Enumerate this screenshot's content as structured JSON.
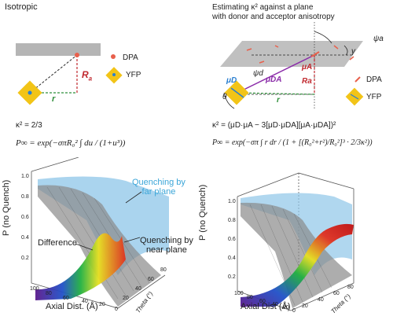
{
  "left_panel": {
    "title": "Isotropic",
    "legend_dpa": "DPA",
    "legend_yfp": "YFP",
    "label_Ra": "R",
    "label_Ra_sub": "a",
    "label_r": "r",
    "kappa_eq": "κ² = 2/3",
    "formula_text": "P∞ = exp(−σπR₀² ∫ du / (1+u³))"
  },
  "right_panel": {
    "title_line1": "Estimating κ² against a plane",
    "title_line2": "with donor and acceptor anisotropy",
    "legend_dpa": "DPA",
    "legend_yfp": "YFP",
    "label_psi_a": "ψa",
    "label_gamma": "γ",
    "label_psi_d": "ψd",
    "label_theta": "θ",
    "label_mu_d": "μD",
    "label_mu_da": "μDA",
    "label_mu_a": "μA",
    "label_Ra": "Ra",
    "label_r": "r",
    "kappa_eq": "κ² = (μD·μA − 3[μD·μDA][μA·μDA])²",
    "formula_text": "P∞ = exp(−σπ ∫ r dr / (1 + [(R₀²+r²)/R₀²]³ · 2/3κ²))"
  },
  "left_plot": {
    "ylabel": "P (no Quench)",
    "xlabel": "Axial Dist. (Å)",
    "zlabel": "Theta (°)",
    "yticks": [
      "1.0",
      "0.8",
      "0.6",
      "0.4",
      "0.2",
      "0"
    ],
    "xticks": [
      "100",
      "80",
      "60",
      "40",
      "20",
      "0"
    ],
    "zticks": [
      "0",
      "20",
      "40",
      "60",
      "80"
    ],
    "annot_far_line1": "Quenching by",
    "annot_far_line2": "far plane",
    "annot_near_line1": "Quenching by",
    "annot_near_line2": "near plane",
    "annot_diff": "Difference"
  },
  "right_plot": {
    "ylabel": "P (no Quench)",
    "xlabel": "Axial Dist (Å)",
    "zlabel": "Theta (°)",
    "yticks": [
      "1.0",
      "0.8",
      "0.6",
      "0.4",
      "0.2",
      "0"
    ],
    "xticks": [
      "100",
      "80",
      "60",
      "40",
      "20",
      "0"
    ],
    "zticks": [
      "0",
      "20",
      "40",
      "60",
      "80"
    ]
  },
  "colors": {
    "dpa": "#e8604c",
    "yfp": "#f2c417",
    "plane": "#b5b5b5",
    "ra_line": "#c0282e",
    "r_line": "#2f8f3a",
    "mu_d": "#2a7fd0",
    "mu_da": "#8a2aa8",
    "far_plane_text": "#3aa5d8",
    "surface_far": "#8ec6e8",
    "surface_near": "#7a7a7a"
  }
}
